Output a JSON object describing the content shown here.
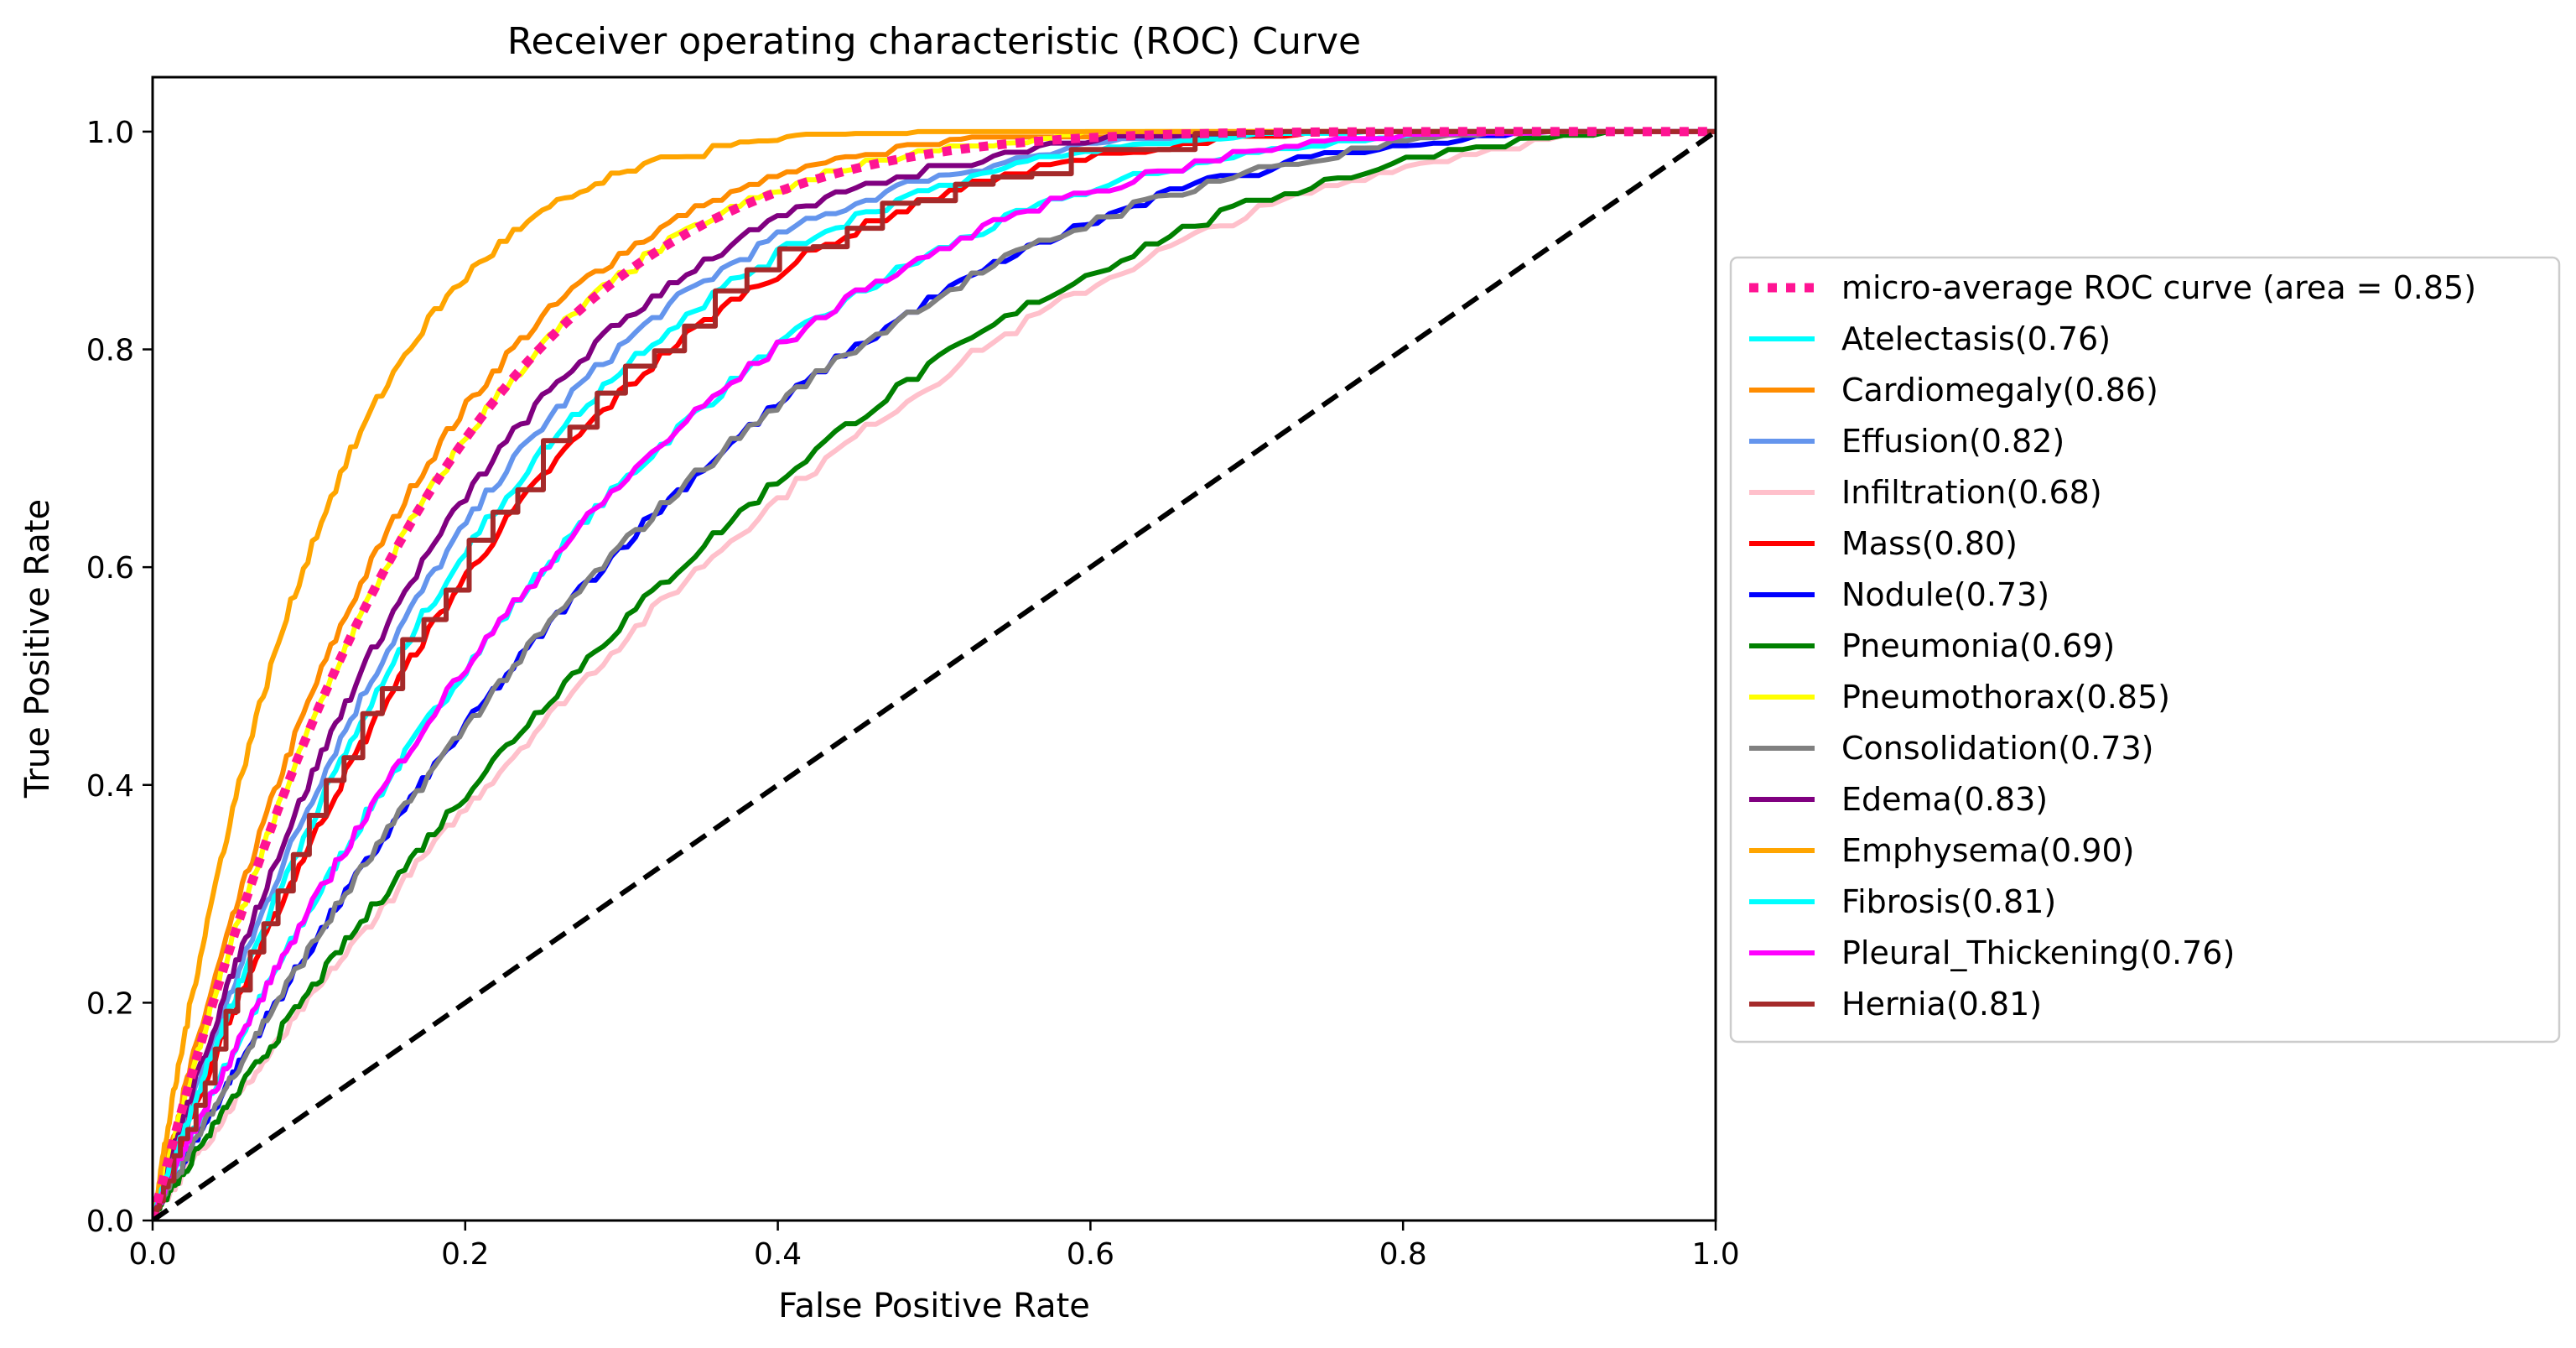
{
  "chart_data": {
    "type": "line",
    "title": "Receiver operating characteristic (ROC) Curve",
    "xlabel": "False Positive Rate",
    "ylabel": "True Positive Rate",
    "xlim": [
      0.0,
      1.0
    ],
    "ylim": [
      0.0,
      1.05
    ],
    "xticks": [
      "0.0",
      "0.2",
      "0.4",
      "0.6",
      "0.8",
      "1.0"
    ],
    "yticks": [
      "0.0",
      "0.2",
      "0.4",
      "0.6",
      "0.8",
      "1.0"
    ],
    "grid": false,
    "legend_position": "center-right outside",
    "series": [
      {
        "name": "micro-average ROC curve (area = 0.85)",
        "color": "#ff1493",
        "style": "dotted",
        "auc": 0.85
      },
      {
        "name": "Atelectasis(0.76)",
        "color": "#00ffff",
        "style": "solid",
        "auc": 0.76
      },
      {
        "name": "Cardiomegaly(0.86)",
        "color": "#ff8c00",
        "style": "solid",
        "auc": 0.86
      },
      {
        "name": "Effusion(0.82)",
        "color": "#6495ed",
        "style": "solid",
        "auc": 0.82
      },
      {
        "name": "Infiltration(0.68)",
        "color": "#ffc0cb",
        "style": "solid",
        "auc": 0.68
      },
      {
        "name": "Mass(0.80)",
        "color": "#ff0000",
        "style": "solid",
        "auc": 0.8
      },
      {
        "name": "Nodule(0.73)",
        "color": "#0000ff",
        "style": "solid",
        "auc": 0.73
      },
      {
        "name": "Pneumonia(0.69)",
        "color": "#008000",
        "style": "solid",
        "auc": 0.69
      },
      {
        "name": "Pneumothorax(0.85)",
        "color": "#ffff00",
        "style": "solid",
        "auc": 0.85
      },
      {
        "name": "Consolidation(0.73)",
        "color": "#808080",
        "style": "solid",
        "auc": 0.73
      },
      {
        "name": "Edema(0.83)",
        "color": "#800080",
        "style": "solid",
        "auc": 0.83
      },
      {
        "name": "Emphysema(0.90)",
        "color": "#ffa500",
        "style": "solid",
        "auc": 0.9
      },
      {
        "name": "Fibrosis(0.81)",
        "color": "#00ffff",
        "style": "solid",
        "auc": 0.81
      },
      {
        "name": "Pleural_Thickening(0.76)",
        "color": "#ff00ff",
        "style": "solid",
        "auc": 0.76
      },
      {
        "name": "Hernia(0.81)",
        "color": "#a52a2a",
        "style": "stepped",
        "auc": 0.81
      }
    ],
    "diagonal": {
      "x": [
        0.0,
        1.0
      ],
      "y": [
        0.0,
        1.0
      ],
      "color": "#000000",
      "style": "dashed"
    }
  }
}
